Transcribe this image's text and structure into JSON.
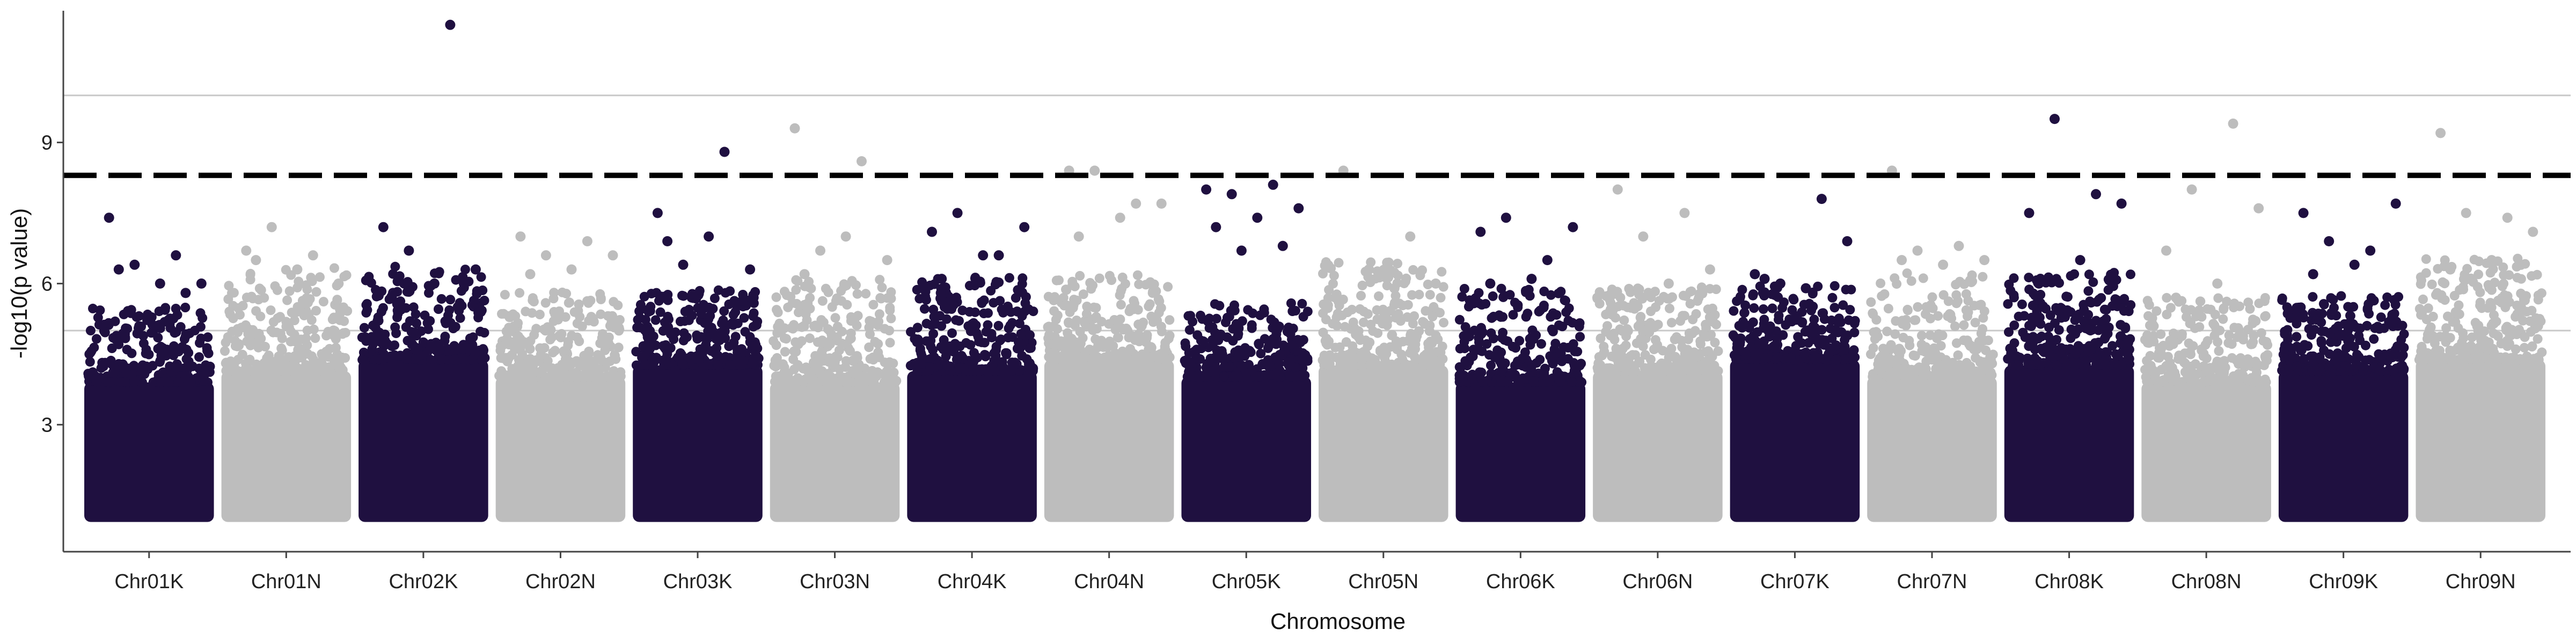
{
  "chart_data": {
    "type": "scatter",
    "title": "",
    "xlabel": "Chromosome",
    "ylabel": "-log10(p value)",
    "categories": [
      "Chr01K",
      "Chr01N",
      "Chr02K",
      "Chr02N",
      "Chr03K",
      "Chr03N",
      "Chr04K",
      "Chr04N",
      "Chr05K",
      "Chr05N",
      "Chr06K",
      "Chr06N",
      "Chr07K",
      "Chr07N",
      "Chr08K",
      "Chr08N",
      "Chr09K",
      "Chr09N"
    ],
    "yticks": [
      "3",
      "6",
      "9"
    ],
    "ylim": [
      0.3,
      11.8
    ],
    "threshold": 8.3,
    "gridlines_y": [
      5,
      10
    ],
    "grid": "horizontal at 5 and 10",
    "legend": "none",
    "colors": {
      "odd": "#1f1040",
      "even": "#bdbdbd",
      "threshold": "#000000",
      "grid": "#c8c8c8",
      "axis": "#444444"
    },
    "peaks": [
      {
        "chromosome": "Chr01K",
        "values": [
          7.4,
          6.6,
          6.4,
          6.0,
          6.0,
          6.3,
          5.8
        ]
      },
      {
        "chromosome": "Chr01N",
        "values": [
          6.7,
          6.6,
          7.2,
          6.0,
          6.3,
          6.5
        ]
      },
      {
        "chromosome": "Chr02K",
        "values": [
          7.2,
          11.5,
          6.7,
          6.3,
          6.0,
          5.8
        ]
      },
      {
        "chromosome": "Chr02N",
        "values": [
          7.0,
          6.9,
          6.6,
          6.6,
          6.3,
          6.2
        ]
      },
      {
        "chromosome": "Chr03K",
        "values": [
          7.5,
          8.8,
          6.4,
          6.3,
          7.0,
          6.9
        ]
      },
      {
        "chromosome": "Chr03N",
        "values": [
          9.3,
          8.6,
          6.7,
          6.5,
          7.0,
          6.2
        ]
      },
      {
        "chromosome": "Chr04K",
        "values": [
          7.1,
          6.6,
          7.5,
          7.2,
          6.6,
          6.1
        ]
      },
      {
        "chromosome": "Chr04N",
        "values": [
          8.4,
          7.7,
          8.4,
          7.7,
          7.4,
          7.0
        ]
      },
      {
        "chromosome": "Chr05K",
        "values": [
          8.0,
          8.1,
          7.9,
          7.6,
          7.4,
          7.2,
          6.8,
          6.7
        ]
      },
      {
        "chromosome": "Chr05N",
        "values": [
          8.4,
          7.0,
          6.3,
          6.0,
          5.9
        ]
      },
      {
        "chromosome": "Chr06K",
        "values": [
          7.1,
          6.5,
          7.4,
          7.2,
          6.1,
          6.0
        ]
      },
      {
        "chromosome": "Chr06N",
        "values": [
          8.0,
          7.5,
          7.0,
          6.3,
          6.0
        ]
      },
      {
        "chromosome": "Chr07K",
        "values": [
          6.2,
          7.8,
          6.0,
          6.9,
          5.9,
          6.1
        ]
      },
      {
        "chromosome": "Chr07N",
        "values": [
          8.4,
          6.8,
          6.7,
          6.5,
          6.4,
          6.5
        ]
      },
      {
        "chromosome": "Chr08K",
        "values": [
          7.5,
          7.9,
          9.5,
          7.7,
          6.5,
          6.0
        ]
      },
      {
        "chromosome": "Chr08N",
        "values": [
          6.7,
          9.4,
          8.0,
          7.6,
          6.0,
          5.7
        ]
      },
      {
        "chromosome": "Chr09K",
        "values": [
          7.5,
          6.7,
          6.9,
          7.7,
          6.4,
          6.2
        ]
      },
      {
        "chromosome": "Chr09N",
        "values": [
          9.2,
          7.4,
          7.5,
          7.1,
          6.5,
          6.3
        ]
      }
    ]
  }
}
